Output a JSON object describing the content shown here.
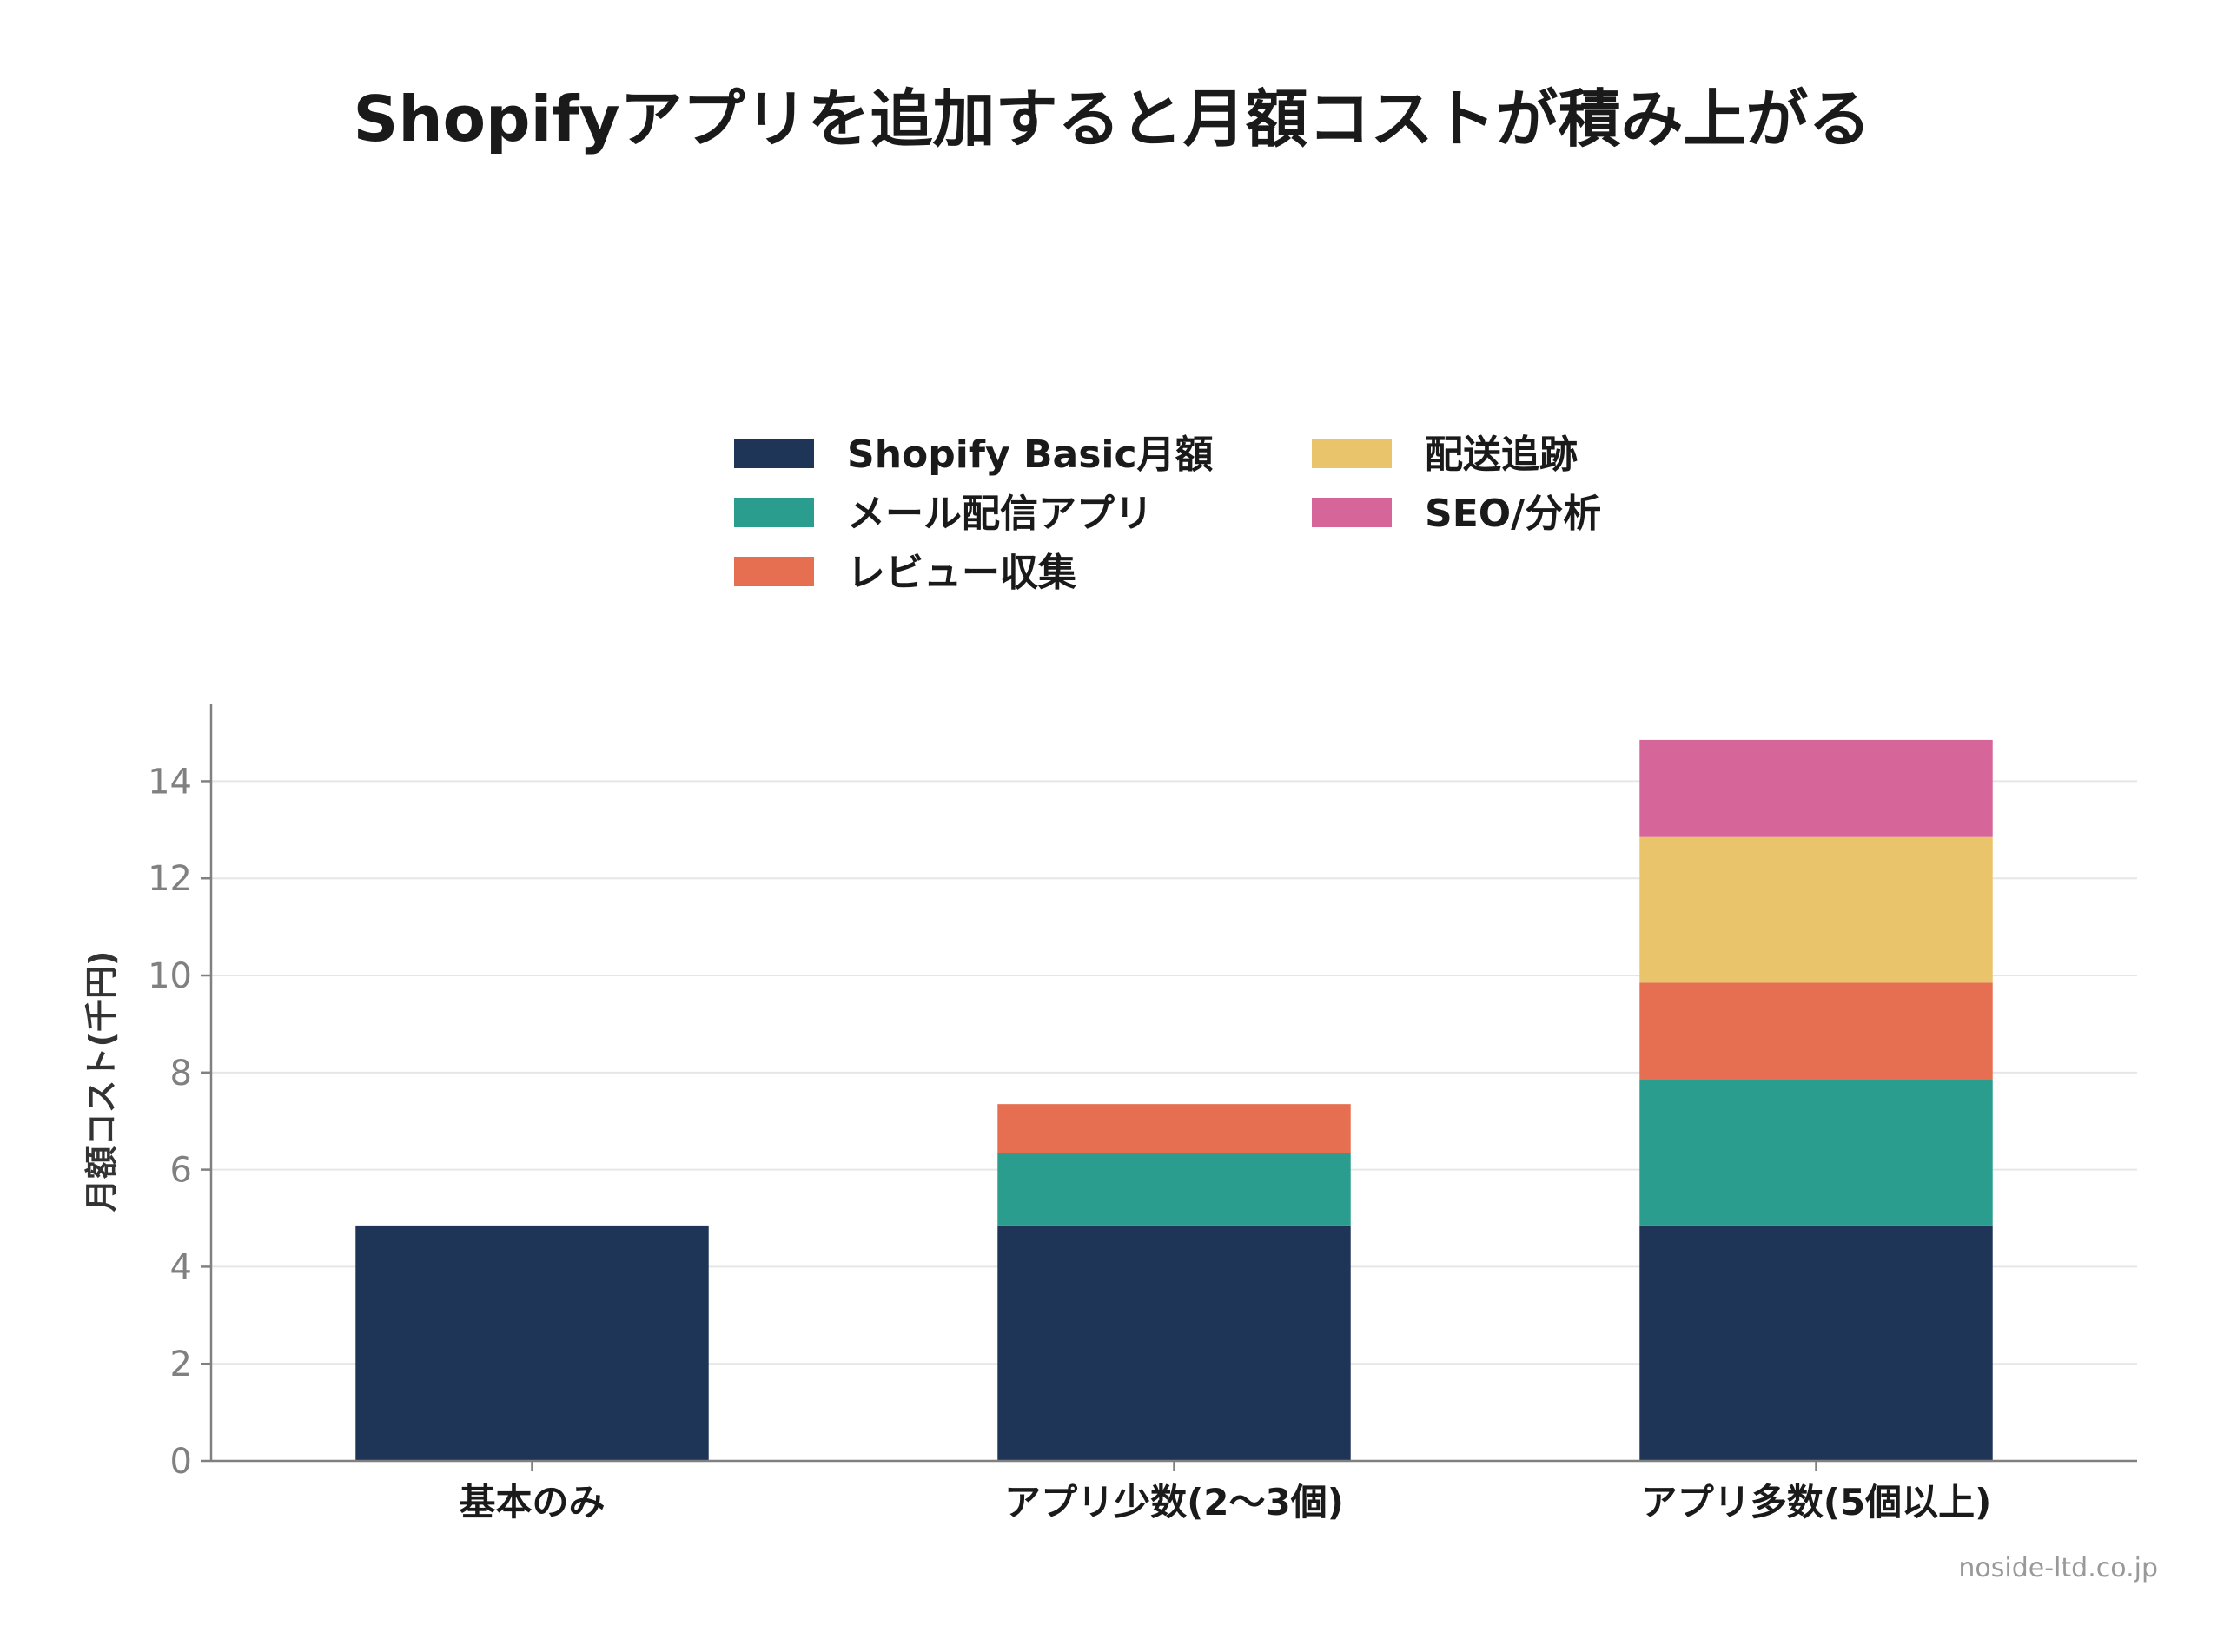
{
  "credit": "noside-ltd.co.jp",
  "chart_data": {
    "type": "bar",
    "stacked": true,
    "title": "Shopifyアプリを追加すると月額コストが積み上がる",
    "xlabel": "",
    "ylabel": "月額コスト(千円)",
    "ylim": [
      0,
      15.6
    ],
    "yticks": [
      0,
      2,
      4,
      6,
      8,
      10,
      12,
      14
    ],
    "grid": true,
    "legend_position": "top-center",
    "categories": [
      "基本のみ",
      "アプリ少数(2〜3個)",
      "アプリ多数(5個以上)"
    ],
    "series": [
      {
        "name": "Shopify Basic月額",
        "color": "#1e3557",
        "values": [
          4.85,
          4.85,
          4.85
        ]
      },
      {
        "name": "メール配信アプリ",
        "color": "#2a9d8f",
        "values": [
          0,
          1.5,
          3.0
        ]
      },
      {
        "name": "レビュー収集",
        "color": "#e76f51",
        "values": [
          0,
          1.0,
          2.0
        ]
      },
      {
        "name": "配送追跡",
        "color": "#e9c46a",
        "values": [
          0,
          0,
          3.0
        ]
      },
      {
        "name": "SEO/分析",
        "color": "#d66699",
        "values": [
          0,
          0,
          2.0
        ]
      }
    ]
  }
}
